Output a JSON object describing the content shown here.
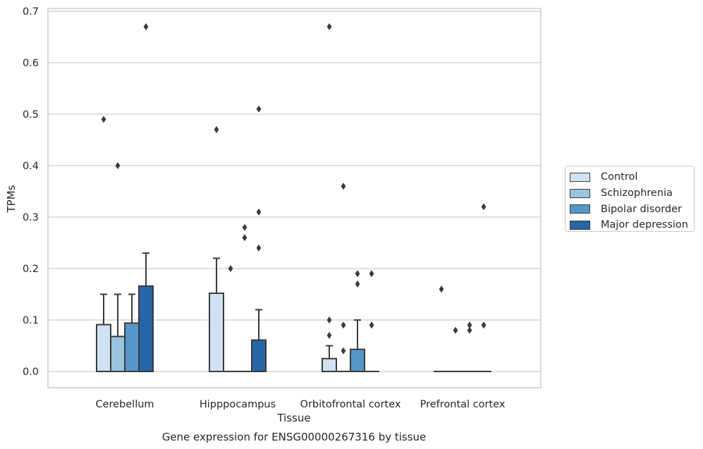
{
  "chart_data": {
    "type": "bar",
    "title": "Gene expression for ENSG00000267316 by tissue",
    "xlabel": "Tissue",
    "ylabel": "TPMs",
    "ylim": [
      -0.032,
      0.705
    ],
    "yticks": [
      "0.0",
      "0.1",
      "0.2",
      "0.3",
      "0.4",
      "0.5",
      "0.6",
      "0.7"
    ],
    "grid": "horizontal",
    "legend_position": "right",
    "categories": [
      "Cerebellum",
      "Hipppocampus",
      "Orbitofrontal cortex",
      "Prefrontal cortex"
    ],
    "series": [
      {
        "name": "Control",
        "color": "#d0e1f2",
        "values": [
          0.091,
          0.152,
          0.025,
          0.0
        ],
        "whisker": [
          0.15,
          0.22,
          0.05,
          0.0
        ],
        "outliers": [
          [
            0.49
          ],
          [
            0.47
          ],
          [
            0.67,
            0.1,
            0.07
          ],
          [
            0.16
          ]
        ]
      },
      {
        "name": "Schizophrenia",
        "color": "#9ac4df",
        "values": [
          0.068,
          0.0,
          0.0,
          0.0
        ],
        "whisker": [
          0.15,
          0.0,
          0.0,
          0.0
        ],
        "outliers": [
          [
            0.4
          ],
          [
            0.2
          ],
          [
            0.36,
            0.09,
            0.04
          ],
          [
            0.08
          ]
        ]
      },
      {
        "name": "Bipolar disorder",
        "color": "#5597c9",
        "values": [
          0.094,
          0.0,
          0.043,
          0.0
        ],
        "whisker": [
          0.15,
          0.0,
          0.1,
          0.0
        ],
        "outliers": [
          [],
          [
            0.28,
            0.26
          ],
          [
            0.19,
            0.17
          ],
          [
            0.09,
            0.08
          ]
        ]
      },
      {
        "name": "Major depression",
        "color": "#2766a6",
        "values": [
          0.166,
          0.061,
          0.0,
          0.0
        ],
        "whisker": [
          0.23,
          0.12,
          0.0,
          0.0
        ],
        "outliers": [
          [
            0.67
          ],
          [
            0.51,
            0.31,
            0.24
          ],
          [
            0.19,
            0.09
          ],
          [
            0.32,
            0.09
          ]
        ]
      }
    ]
  }
}
